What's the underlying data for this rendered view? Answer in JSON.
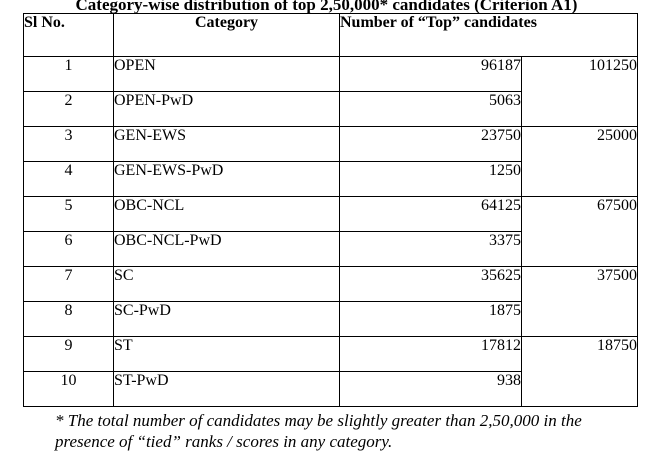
{
  "caption": "Category-wise distribution of top 2,50,000* candidates (Criterion A1)",
  "headers": {
    "sl_no": "Sl No.",
    "category": "Category",
    "number": "Number of “Top” candidates"
  },
  "rows": [
    {
      "sl": "1",
      "category": "OPEN",
      "count": "96187",
      "group_total": "101250"
    },
    {
      "sl": "2",
      "category": "OPEN-PwD",
      "count": "5063"
    },
    {
      "sl": "3",
      "category": "GEN-EWS",
      "count": "23750",
      "group_total": "25000"
    },
    {
      "sl": "4",
      "category": "GEN-EWS-PwD",
      "count": "1250"
    },
    {
      "sl": "5",
      "category": "OBC-NCL",
      "count": "64125",
      "group_total": "67500"
    },
    {
      "sl": "6",
      "category": "OBC-NCL-PwD",
      "count": "3375"
    },
    {
      "sl": "7",
      "category": "SC",
      "count": "35625",
      "group_total": "37500"
    },
    {
      "sl": "8",
      "category": "SC-PwD",
      "count": "1875"
    },
    {
      "sl": "9",
      "category": "ST",
      "count": "17812",
      "group_total": "18750"
    },
    {
      "sl": "10",
      "category": "ST-PwD",
      "count": "938"
    }
  ],
  "footnote_line1": "* The total number of candidates may be slightly greater than 2,50,000 in the",
  "footnote_line2": "presence of “tied” ranks / scores in any category."
}
